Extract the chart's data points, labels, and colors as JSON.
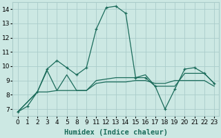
{
  "xlabel": "Humidex (Indice chaleur)",
  "x_labels": [
    "0",
    "1",
    "2",
    "3",
    "4",
    "5",
    "8",
    "9",
    "11",
    "12",
    "13",
    "14",
    "15",
    "16",
    "17",
    "18",
    "19",
    "20",
    "21",
    "22",
    "23"
  ],
  "series1_y": [
    6.8,
    7.2,
    8.2,
    9.8,
    10.4,
    9.9,
    9.4,
    9.9,
    12.6,
    14.1,
    14.2,
    13.7,
    9.2,
    9.2,
    8.6,
    7.0,
    8.4,
    9.8,
    9.9,
    9.5,
    8.8
  ],
  "series2_y": [
    6.8,
    8.2,
    9.7,
    8.3,
    9.4,
    8.3,
    8.3,
    9.0,
    9.1,
    9.2,
    9.2,
    9.2,
    9.4,
    8.6,
    8.6,
    8.6,
    9.5,
    9.5,
    9.5,
    8.8
  ],
  "series2_x_idx": [
    0,
    2,
    3,
    4,
    5,
    6,
    7,
    8,
    9,
    10,
    11,
    12,
    13,
    14,
    15,
    16,
    17,
    18,
    19,
    20
  ],
  "series3_y": [
    6.8,
    8.2,
    8.2,
    8.3,
    8.3,
    8.3,
    8.3,
    8.8,
    8.9,
    8.9,
    8.9,
    9.0,
    9.0,
    8.8,
    8.8,
    9.0,
    9.0,
    9.0,
    9.0,
    8.6
  ],
  "series3_x_idx": [
    0,
    2,
    3,
    4,
    5,
    6,
    7,
    8,
    9,
    10,
    11,
    12,
    13,
    14,
    15,
    16,
    17,
    18,
    19,
    20
  ],
  "ylim": [
    6.5,
    14.5
  ],
  "yticks": [
    7,
    8,
    9,
    10,
    11,
    12,
    13,
    14
  ],
  "bg_color": "#cce8e3",
  "grid_color": "#aaccca",
  "line_color": "#1a6b5a",
  "tick_fontsize": 6.5,
  "xlabel_fontsize": 7.5
}
